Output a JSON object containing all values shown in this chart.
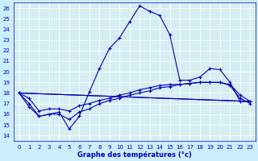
{
  "title": "Graphe des températures (°c)",
  "background_color": "#cceeff",
  "plot_bg_color": "#d4eef4",
  "grid_color": "#ffffff",
  "line_color": "#0000bb",
  "border_color": "#0000bb",
  "xlim": [
    -0.5,
    23.5
  ],
  "ylim": [
    13.5,
    26.5
  ],
  "yticks": [
    14,
    15,
    16,
    17,
    18,
    19,
    20,
    21,
    22,
    23,
    24,
    25,
    26
  ],
  "xticks": [
    0,
    1,
    2,
    3,
    4,
    5,
    6,
    7,
    8,
    9,
    10,
    11,
    12,
    13,
    14,
    15,
    16,
    17,
    18,
    19,
    20,
    21,
    22,
    23
  ],
  "line1_x": [
    0,
    1,
    2,
    3,
    4,
    5,
    6,
    7,
    8,
    9,
    10,
    11,
    12,
    13,
    14,
    15,
    16,
    17,
    18,
    19,
    20,
    21,
    22,
    23
  ],
  "line1_y": [
    18.0,
    16.7,
    15.8,
    16.0,
    16.2,
    14.6,
    15.8,
    18.1,
    20.3,
    22.2,
    23.2,
    24.7,
    26.2,
    25.7,
    25.3,
    23.5,
    19.2,
    19.2,
    19.5,
    20.3,
    20.2,
    19.0,
    17.2,
    17.2
  ],
  "line2_x": [
    0,
    23
  ],
  "line2_y": [
    18.0,
    17.2
  ],
  "line3_x": [
    0,
    23
  ],
  "line3_y": [
    18.0,
    17.2
  ],
  "line4_x": [
    0,
    1,
    2,
    3,
    4,
    5,
    6,
    7,
    8,
    9,
    10,
    11,
    12,
    13,
    14,
    15,
    16,
    17,
    18,
    19,
    20,
    21,
    22,
    23
  ],
  "line4_y": [
    18.0,
    17.5,
    16.3,
    16.5,
    16.5,
    16.3,
    16.8,
    17.0,
    17.3,
    17.5,
    17.8,
    18.0,
    18.3,
    18.5,
    18.7,
    18.8,
    18.8,
    18.9,
    19.0,
    19.0,
    19.0,
    18.8,
    17.8,
    17.2
  ],
  "line5_x": [
    0,
    1,
    2,
    3,
    4,
    5,
    6,
    7,
    8,
    9,
    10,
    11,
    12,
    13,
    14,
    15,
    16,
    17,
    18,
    19,
    20,
    21,
    22,
    23
  ],
  "line5_y": [
    18.0,
    17.0,
    15.8,
    16.0,
    16.0,
    15.5,
    16.2,
    16.5,
    17.0,
    17.3,
    17.5,
    17.8,
    18.0,
    18.2,
    18.5,
    18.6,
    18.8,
    18.9,
    19.0,
    19.0,
    19.0,
    18.7,
    17.5,
    17.0
  ]
}
